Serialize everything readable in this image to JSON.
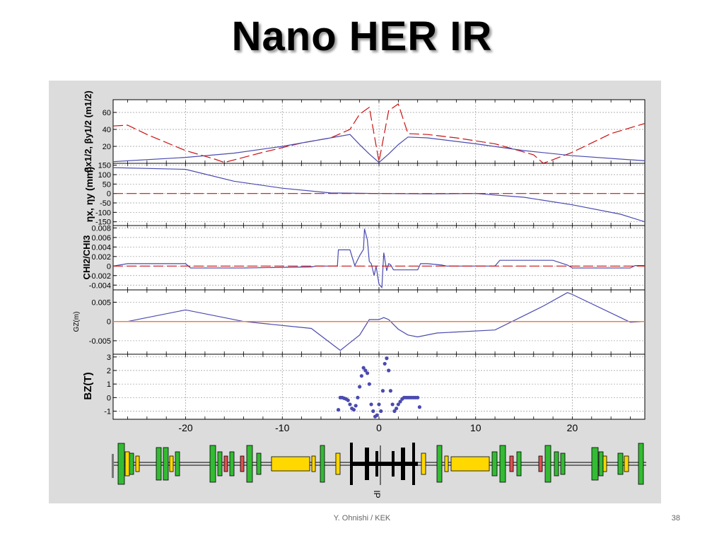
{
  "slide": {
    "title": "Nano HER IR",
    "footer": "Y. Ohnishi / KEK",
    "page_number": "38"
  },
  "colors": {
    "red_dashed": "#cc1111",
    "blue_line": "#4a4ab0",
    "orange_line": "#f08040",
    "magnet_green": "#33bb33",
    "magnet_yellow": "#ffd800",
    "magnet_red": "#e05050",
    "magnet_black": "#000000",
    "figure_bg": "#dcdcdc"
  },
  "chart_data": [
    {
      "type": "line",
      "ylabel": "βx1/2, βy1/2 (m1/2)",
      "ylim": [
        0,
        75
      ],
      "xlim": [
        -27.5,
        27.5
      ],
      "yticks": [
        "20",
        "40",
        "60"
      ],
      "grid": true,
      "series": [
        {
          "style": "dashed",
          "color": "red",
          "x": [
            -27.5,
            -26,
            -24,
            -20,
            -17,
            -16,
            -12,
            -8,
            -5,
            -3,
            -2,
            -1,
            0,
            1,
            2,
            3,
            5,
            8,
            12,
            16,
            17,
            20,
            24,
            27.5
          ],
          "values": [
            44,
            45,
            34,
            15,
            5,
            1,
            13,
            24,
            30,
            40,
            58,
            66,
            2,
            62,
            70,
            35,
            34,
            30,
            23,
            10,
            0,
            13,
            35,
            47
          ]
        },
        {
          "style": "solid",
          "color": "blue",
          "x": [
            -27.5,
            -20,
            -15,
            -10,
            -5,
            -3,
            -2,
            -1,
            0,
            1,
            2,
            3,
            5,
            10,
            15,
            20,
            27.5
          ],
          "values": [
            2,
            7,
            12,
            20,
            30,
            34,
            22,
            11,
            1,
            11,
            22,
            31,
            30,
            23,
            15,
            9,
            3
          ]
        }
      ]
    },
    {
      "type": "line",
      "ylabel": "ηx, ηy (mm)",
      "ylim": [
        -170,
        160
      ],
      "xlim": [
        -27.5,
        27.5
      ],
      "yticks": [
        "150",
        "100",
        "50",
        "0",
        "-50",
        "-100",
        "-150"
      ],
      "grid": true,
      "series": [
        {
          "style": "solid",
          "color": "blue",
          "x": [
            -27.5,
            -20,
            -15,
            -10,
            -5,
            0,
            5,
            10,
            15,
            20,
            25,
            27.5
          ],
          "values": [
            137,
            128,
            65,
            28,
            3,
            0,
            -2,
            0,
            -20,
            -60,
            -110,
            -150
          ]
        },
        {
          "style": "dashed",
          "color": "red",
          "x": [
            -27.5,
            0,
            27.5
          ],
          "values": [
            0,
            0,
            0
          ]
        }
      ]
    },
    {
      "type": "line",
      "ylabel": "CHI2/CHI3",
      "ylim": [
        -0.005,
        0.0085
      ],
      "xlim": [
        -27.5,
        27.5
      ],
      "yticks": [
        "0.008",
        "0.006",
        "0.004",
        "0.002",
        "0",
        "-0.002",
        "-0.004"
      ],
      "grid": true,
      "series": [
        {
          "style": "solid",
          "color": "blue",
          "x": [
            -27.5,
            -26,
            -20,
            -19.5,
            -14,
            -7,
            -6.5,
            -4.3,
            -4.2,
            -3,
            -2.5,
            -2,
            -1.6,
            -1.5,
            -1.2,
            -1,
            -0.8,
            -0.5,
            -0.3,
            0,
            0.3,
            0.5,
            0.8,
            1,
            1.2,
            1.5,
            2,
            3,
            4,
            4.3,
            5,
            6.5,
            7,
            12,
            12.5,
            18,
            19.5,
            20,
            26,
            26.5,
            27.5
          ],
          "values": [
            0,
            0.0005,
            0.0005,
            -0.0004,
            -0.0004,
            -0.0002,
            0,
            0,
            0.0034,
            0.0034,
            0.0001,
            0.0022,
            0.0035,
            0.0078,
            0.0055,
            0.001,
            0.0005,
            -0.002,
            0,
            -0.0038,
            -0.0045,
            0.0028,
            -0.001,
            0.0005,
            0.0003,
            -0.0008,
            -0.0008,
            -0.0008,
            -0.0008,
            0.0005,
            0.0005,
            0.0002,
            0,
            0,
            0.0012,
            0.0012,
            0.0002,
            -0.0004,
            -0.0004,
            0.0001,
            0.0001
          ]
        },
        {
          "style": "dashed",
          "color": "red",
          "x": [
            -27.5,
            27.5
          ],
          "values": [
            0,
            0
          ]
        }
      ]
    },
    {
      "type": "line",
      "ylabel": "GZ(m)",
      "ylim": [
        -0.0085,
        0.0082
      ],
      "xlim": [
        -27.5,
        27.5
      ],
      "yticks": [
        "0.005",
        "0",
        "-0.005"
      ],
      "grid": true,
      "series": [
        {
          "style": "solid",
          "color": "blue",
          "x": [
            -27.5,
            -26,
            -20,
            -14,
            -7,
            -4,
            -3,
            -2,
            -1,
            0,
            0.5,
            1,
            2,
            3,
            4,
            6,
            12,
            17,
            19.5,
            20,
            26,
            27.5
          ],
          "values": [
            0,
            0,
            0.003,
            0,
            -0.0018,
            -0.0075,
            -0.0055,
            -0.0035,
            0.0005,
            0.0005,
            0.001,
            0.0005,
            -0.002,
            -0.0035,
            -0.004,
            -0.003,
            -0.0022,
            0.004,
            0.0075,
            0.007,
            -0.0002,
            0
          ]
        },
        {
          "style": "solid",
          "color": "orange",
          "x": [
            -27.5,
            27.5
          ],
          "values": [
            0,
            0
          ]
        }
      ]
    },
    {
      "type": "scatter",
      "ylabel": "BZ(T)",
      "xlabel": "",
      "ylim": [
        -1.6,
        3.2
      ],
      "xlim": [
        -27.5,
        27.5
      ],
      "xticks": [
        "-20",
        "-10",
        "0",
        "10",
        "20"
      ],
      "yticks": [
        "3",
        "2",
        "1",
        "0",
        "-1"
      ],
      "grid": true,
      "series": [
        {
          "color": "blue",
          "x": [
            -4.2,
            -4,
            -3.8,
            -3.6,
            -3.4,
            -3.2,
            -3,
            -2.8,
            -2.6,
            -2.4,
            -2.2,
            -2,
            -1.8,
            -1.6,
            -1.4,
            -1.2,
            -1,
            -0.8,
            -0.6,
            -0.4,
            -0.2,
            0,
            0.2,
            0.4,
            0.6,
            0.8,
            1,
            1.2,
            1.4,
            1.6,
            1.8,
            2,
            2.2,
            2.4,
            2.6,
            2.8,
            3,
            3.2,
            3.4,
            3.6,
            3.8,
            4,
            4.2
          ],
          "values": [
            -0.9,
            0,
            0,
            -0.05,
            -0.1,
            -0.2,
            -0.5,
            -0.8,
            -0.9,
            -0.6,
            0,
            0.8,
            1.6,
            2.2,
            2.0,
            1.8,
            1.0,
            -0.5,
            -1.0,
            -1.4,
            -1.3,
            -0.5,
            -1.0,
            0.5,
            2.5,
            2.9,
            2.0,
            0.5,
            -0.5,
            -1.0,
            -0.8,
            -0.5,
            -0.3,
            -0.1,
            0,
            0,
            0,
            0,
            0,
            0,
            0,
            0,
            -0.7
          ]
        }
      ]
    }
  ],
  "lattice": {
    "ip_label": "IP"
  }
}
